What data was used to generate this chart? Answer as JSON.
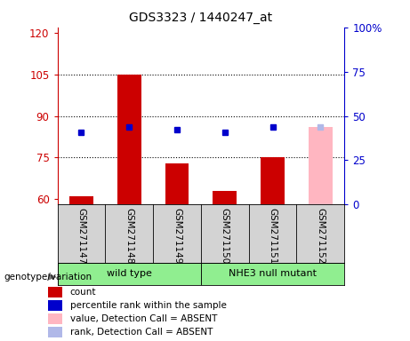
{
  "title": "GDS3323 / 1440247_at",
  "samples": [
    "GSM271147",
    "GSM271148",
    "GSM271149",
    "GSM271150",
    "GSM271151",
    "GSM271152"
  ],
  "count_values": [
    61,
    105,
    73,
    63,
    75,
    null
  ],
  "count_absent": [
    false,
    false,
    false,
    false,
    false,
    true
  ],
  "absent_count_value": 86,
  "rank_values_left_scale": [
    84,
    86,
    85,
    84,
    86,
    86
  ],
  "rank_absent": [
    false,
    false,
    false,
    false,
    false,
    true
  ],
  "ylim_left": [
    58,
    122
  ],
  "ylim_right": [
    0,
    100
  ],
  "yticks_left": [
    60,
    75,
    90,
    105,
    120
  ],
  "yticks_right": [
    0,
    25,
    50,
    75,
    100
  ],
  "ytick_labels_left": [
    "60",
    "75",
    "90",
    "105",
    "120"
  ],
  "ytick_labels_right": [
    "0",
    "25",
    "50",
    "75",
    "100%"
  ],
  "hlines": [
    75,
    90,
    105
  ],
  "bar_color_present": "#cc0000",
  "bar_color_absent": "#ffb6c1",
  "rank_color_present": "#0000cc",
  "rank_color_absent": "#b0b8e8",
  "left_axis_color": "#cc0000",
  "right_axis_color": "#0000cc",
  "bar_width": 0.5,
  "wt_group": [
    0,
    1,
    2
  ],
  "nhe_group": [
    3,
    4,
    5
  ],
  "wt_label": "wild type",
  "nhe_label": "NHE3 null mutant",
  "group_color": "#90ee90",
  "genotype_label": "genotype/variation",
  "legend_items": [
    {
      "color": "#cc0000",
      "label": "count"
    },
    {
      "color": "#0000cc",
      "label": "percentile rank within the sample"
    },
    {
      "color": "#ffb6c1",
      "label": "value, Detection Call = ABSENT"
    },
    {
      "color": "#b0b8e8",
      "label": "rank, Detection Call = ABSENT"
    }
  ]
}
